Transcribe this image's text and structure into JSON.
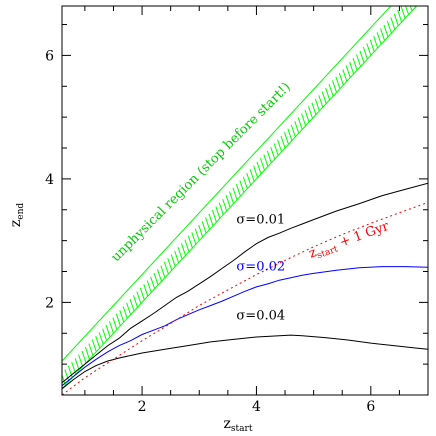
{
  "chart_data": {
    "type": "line",
    "xlabel": "z",
    "xlabel_sub": "start",
    "ylabel": "z",
    "ylabel_sub": "end",
    "xlim": [
      0.6,
      7.0
    ],
    "ylim": [
      0.5,
      6.8
    ],
    "xticks": [
      2,
      4,
      6
    ],
    "yticks": [
      2,
      4,
      6
    ],
    "xtick_labels": [
      "2",
      "4",
      "6"
    ],
    "ytick_labels": [
      "2",
      "4",
      "6"
    ],
    "series": [
      {
        "name": "σ=0.01",
        "color": "#000000",
        "style": "solid",
        "x": [
          0.6,
          0.8,
          1.0,
          1.2,
          1.4,
          1.6,
          1.8,
          2.0,
          2.2,
          2.4,
          2.6,
          2.8,
          3.0,
          3.2,
          3.4,
          3.6,
          3.8,
          4.0,
          4.2,
          4.4,
          4.6,
          4.8,
          5.0,
          5.4,
          5.8,
          6.2,
          6.6,
          7.0
        ],
        "y": [
          0.7,
          0.85,
          1.0,
          1.15,
          1.3,
          1.42,
          1.58,
          1.7,
          1.82,
          1.95,
          2.08,
          2.18,
          2.3,
          2.42,
          2.55,
          2.68,
          2.82,
          2.95,
          3.05,
          3.12,
          3.2,
          3.27,
          3.34,
          3.48,
          3.6,
          3.73,
          3.83,
          3.93
        ]
      },
      {
        "name": "σ=0.02",
        "color": "#0000ff",
        "style": "solid",
        "x": [
          0.6,
          0.8,
          1.0,
          1.2,
          1.4,
          1.6,
          1.8,
          2.0,
          2.2,
          2.4,
          2.6,
          2.8,
          3.0,
          3.2,
          3.4,
          3.6,
          3.8,
          4.0,
          4.2,
          4.4,
          4.6,
          4.8,
          5.0,
          5.4,
          5.8,
          6.2,
          6.6,
          7.0
        ],
        "y": [
          0.65,
          0.8,
          0.95,
          1.08,
          1.2,
          1.3,
          1.38,
          1.48,
          1.55,
          1.62,
          1.72,
          1.8,
          1.88,
          1.95,
          2.02,
          2.1,
          2.18,
          2.25,
          2.3,
          2.36,
          2.4,
          2.44,
          2.47,
          2.52,
          2.56,
          2.58,
          2.58,
          2.57
        ]
      },
      {
        "name": "σ=0.04",
        "color": "#000000",
        "style": "solid",
        "x": [
          0.6,
          0.8,
          1.0,
          1.2,
          1.4,
          1.6,
          1.8,
          2.0,
          2.4,
          2.8,
          3.2,
          3.6,
          4.0,
          4.4,
          4.6,
          4.8,
          5.2,
          5.6,
          6.0,
          6.4,
          6.8,
          7.0
        ],
        "y": [
          0.6,
          0.75,
          0.88,
          0.98,
          1.05,
          1.1,
          1.14,
          1.18,
          1.24,
          1.3,
          1.36,
          1.4,
          1.44,
          1.46,
          1.47,
          1.46,
          1.43,
          1.39,
          1.34,
          1.3,
          1.26,
          1.24
        ]
      },
      {
        "name": "z_start + 1 Gyr",
        "color": "#ff0000",
        "style": "dotted",
        "x": [
          0.6,
          1.0,
          1.5,
          2.0,
          2.5,
          3.0,
          3.5,
          4.0,
          4.5,
          5.0,
          5.5,
          6.0,
          6.5,
          7.0
        ],
        "y": [
          0.5,
          0.78,
          1.08,
          1.38,
          1.66,
          1.95,
          2.2,
          2.45,
          2.68,
          2.9,
          3.1,
          3.28,
          3.45,
          3.62
        ]
      }
    ],
    "shaded_region": {
      "label": "unphysical region (stop before start!)",
      "color": "#00ff00",
      "boundary": "z_end = z_start",
      "band_width": 0.45
    },
    "annotations": [
      {
        "text": "σ=0.01",
        "x": 3.65,
        "y": 3.28,
        "color": "#000000",
        "rotate": 0
      },
      {
        "text": "σ=0.02",
        "x": 3.65,
        "y": 2.52,
        "color": "#0000ff",
        "rotate": 0
      },
      {
        "text": "σ=0.04",
        "x": 3.65,
        "y": 1.72,
        "color": "#000000",
        "rotate": 0
      },
      {
        "text": "z_start + 1 Gyr",
        "x": 4.95,
        "y": 2.72,
        "color": "#ff0000",
        "rotate": -20
      },
      {
        "text": "unphysical region (stop before start!)",
        "x": 1.55,
        "y": 2.65,
        "color": "#00cc00",
        "rotate": -45
      }
    ]
  }
}
